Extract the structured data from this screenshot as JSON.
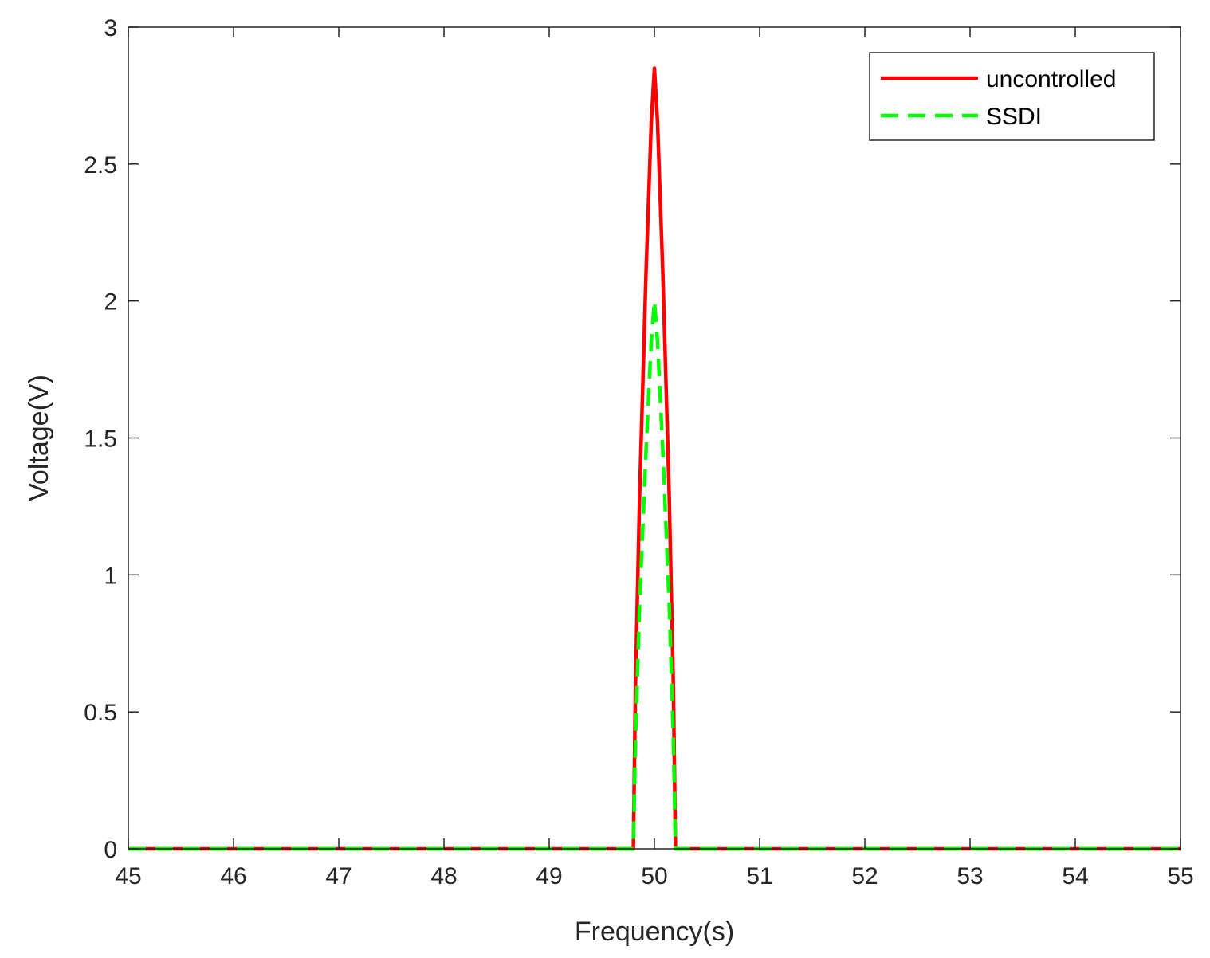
{
  "chart_data": {
    "type": "line",
    "title": "",
    "xlabel": "Frequency(s)",
    "ylabel": "Voltage(V)",
    "xlim": [
      45,
      55
    ],
    "ylim": [
      0,
      3
    ],
    "xticks": [
      45,
      46,
      47,
      48,
      49,
      50,
      51,
      52,
      53,
      54,
      55
    ],
    "yticks": [
      0,
      0.5,
      1,
      1.5,
      2,
      2.5,
      3
    ],
    "xtick_labels": [
      "45",
      "46",
      "47",
      "48",
      "49",
      "50",
      "51",
      "52",
      "53",
      "54",
      "55"
    ],
    "ytick_labels": [
      "0",
      "0.5",
      "1",
      "1.5",
      "2",
      "2.5",
      "3"
    ],
    "grid": false,
    "legend_position": "top-right",
    "series": [
      {
        "name": "uncontrolled",
        "color": "#ff0000",
        "style": "solid",
        "x": [
          45,
          49.8,
          49.82,
          49.86,
          49.92,
          49.97,
          50.0,
          50.03,
          50.08,
          50.14,
          50.18,
          50.2,
          55
        ],
        "y": [
          0,
          0,
          0.6,
          1.3,
          2.1,
          2.65,
          2.85,
          2.65,
          2.1,
          1.3,
          0.6,
          0,
          0
        ]
      },
      {
        "name": "SSDI",
        "color": "#00ff00",
        "style": "dashed",
        "x": [
          45,
          49.8,
          49.82,
          49.86,
          49.92,
          49.97,
          50.0,
          50.03,
          50.08,
          50.14,
          50.18,
          50.2,
          55
        ],
        "y": [
          0,
          0,
          0.4,
          0.9,
          1.45,
          1.85,
          2.0,
          1.85,
          1.45,
          0.9,
          0.4,
          0,
          0
        ]
      }
    ]
  }
}
